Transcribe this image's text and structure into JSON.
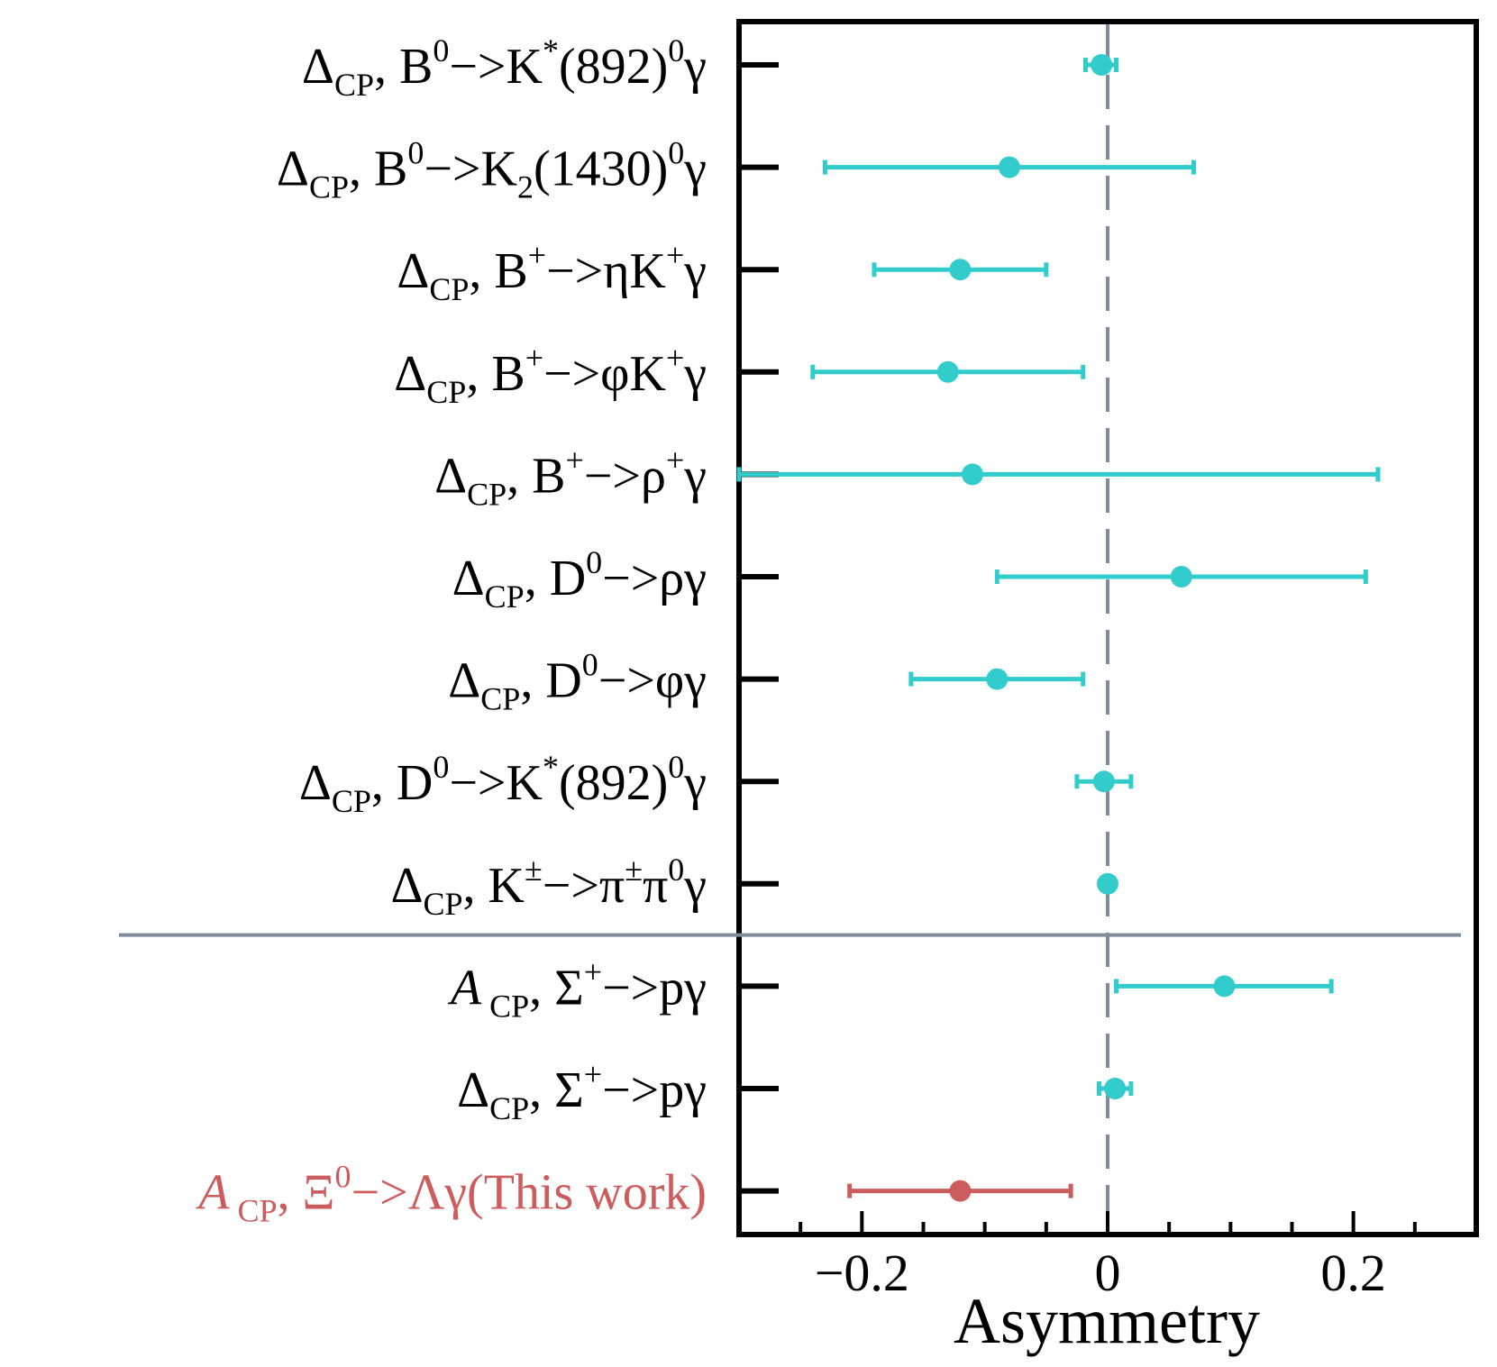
{
  "chart_data": {
    "type": "scatter",
    "subtype": "forest-plot-with-horizontal-error-bars",
    "xlabel": "Asymmetry",
    "xlim": [
      -0.3,
      0.3
    ],
    "xticks": [
      {
        "value": -0.2,
        "label": "−0.2"
      },
      {
        "value": 0,
        "label": "0"
      },
      {
        "value": 0.2,
        "label": "0.2"
      }
    ],
    "xminor_ticks": [
      -0.25,
      -0.15,
      -0.1,
      -0.05,
      0.05,
      0.1,
      0.15,
      0.25
    ],
    "reference_line_x": 0,
    "separator_after_index": 8,
    "colors": {
      "default": "#33cccc",
      "highlight": "#cd5c5c",
      "reference_line": "#7f8c99",
      "separator": "#7f8c99"
    },
    "rows": [
      {
        "label": "ΔCP, B0−>K*(892)0γ",
        "central": -0.005,
        "low": -0.018,
        "high": 0.007,
        "highlight": false
      },
      {
        "label": "ΔCP, B0−>K2(1430)0γ",
        "central": -0.08,
        "low": -0.23,
        "high": 0.07,
        "highlight": false
      },
      {
        "label": "ΔCP, B+−>ηK+γ",
        "central": -0.12,
        "low": -0.19,
        "high": -0.05,
        "highlight": false
      },
      {
        "label": "ΔCP, B+−>φK+γ",
        "central": -0.13,
        "low": -0.24,
        "high": -0.02,
        "highlight": false
      },
      {
        "label": "ΔCP, B+−>ρ+γ",
        "central": -0.11,
        "low": -0.3,
        "high": 0.22,
        "highlight": false
      },
      {
        "label": "ΔCP, D0−>ργ",
        "central": 0.06,
        "low": -0.09,
        "high": 0.21,
        "highlight": false
      },
      {
        "label": "ΔCP, D0−>φγ",
        "central": -0.09,
        "low": -0.16,
        "high": -0.02,
        "highlight": false
      },
      {
        "label": "ΔCP, D0−>K*(892)0γ",
        "central": -0.003,
        "low": -0.025,
        "high": 0.019,
        "highlight": false
      },
      {
        "label": "ΔCP, K±−>π±π0γ",
        "central": 0.0,
        "low": 0.0,
        "high": 0.0,
        "highlight": false
      },
      {
        "label": "ACP, Σ+−>pγ",
        "central": 0.095,
        "low": 0.007,
        "high": 0.182,
        "highlight": false
      },
      {
        "label": "ΔCP, Σ+−>pγ",
        "central": 0.006,
        "low": -0.007,
        "high": 0.019,
        "highlight": false
      },
      {
        "label": "ACP, Ξ0−>Λγ(This work)",
        "central": -0.12,
        "low": -0.21,
        "high": -0.03,
        "highlight": true
      }
    ]
  }
}
